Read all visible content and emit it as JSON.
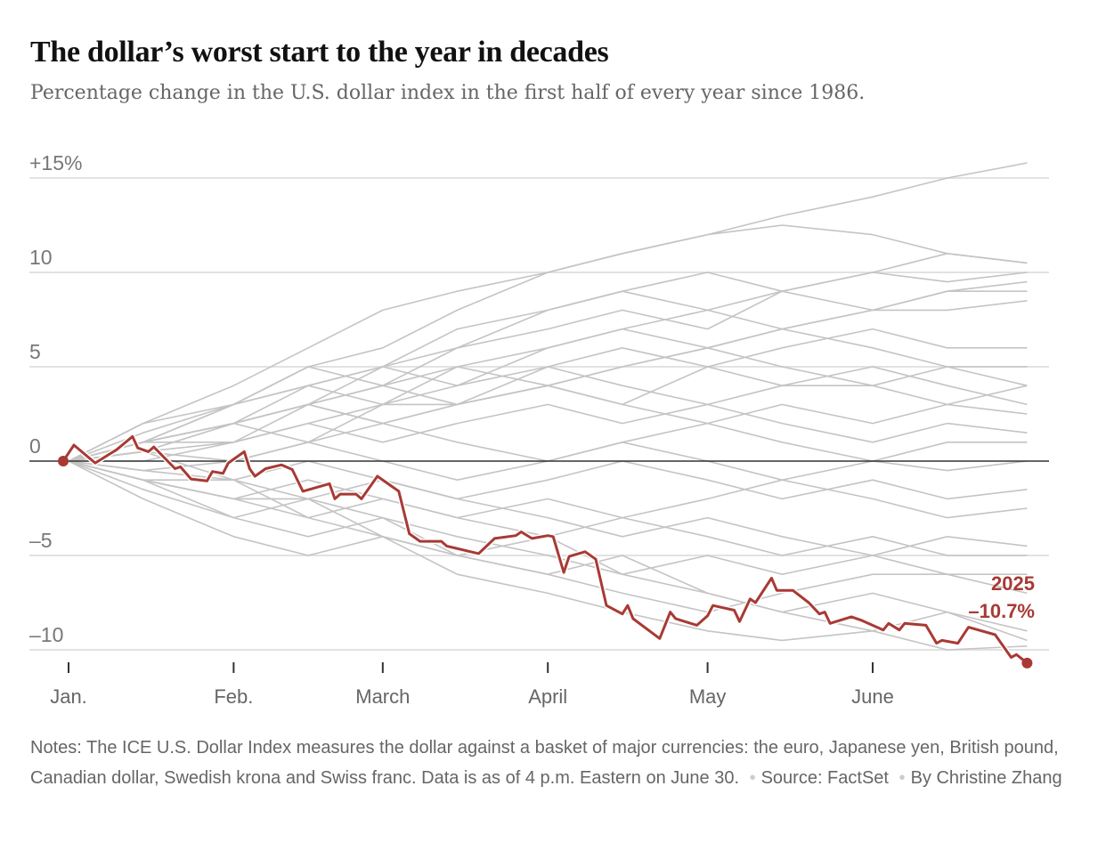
{
  "title": "The dollar’s worst start to the year in decades",
  "subtitle": "Percentage change in the U.S. dollar index in the first half of every year since 1986.",
  "notes": {
    "text": "Notes: The ICE U.S. Dollar Index measures the dollar against a basket of major currencies: the euro, Japanese yen, British pound, Canadian dollar, Swedish krona and Swiss franc. Data is as of 4 p.m. Eastern on June 30.",
    "source": "Source: FactSet",
    "byline": "By Christine Zhang"
  },
  "chart_data": {
    "type": "line",
    "title": "The dollar’s worst start to the year in decades",
    "xlabel": "",
    "ylabel": "",
    "ylim": [
      -11,
      15.5
    ],
    "xlim": [
      "2025-01-01",
      "2025-06-30"
    ],
    "grid": true,
    "y_ticks": [
      {
        "value": 15,
        "label": "+15%"
      },
      {
        "value": 10,
        "label": "10"
      },
      {
        "value": 5,
        "label": "5"
      },
      {
        "value": 0,
        "label": "0"
      },
      {
        "value": -5,
        "label": "–5"
      },
      {
        "value": -10,
        "label": "–10"
      }
    ],
    "x_ticks": [
      {
        "date": "2025-01-01",
        "label": "Jan."
      },
      {
        "date": "2025-02-01",
        "label": "Feb."
      },
      {
        "date": "2025-03-01",
        "label": "March"
      },
      {
        "date": "2025-04-01",
        "label": "April"
      },
      {
        "date": "2025-05-01",
        "label": "May"
      },
      {
        "date": "2025-06-01",
        "label": "June"
      }
    ],
    "colors": {
      "highlight": "#a83a34",
      "other_years": "#c4c4c4",
      "zero_line": "#333333",
      "grid": "#e2e2e2"
    },
    "highlight": {
      "name": "2025",
      "label_value": "–10.7%",
      "points": [
        [
          "2024-12-31",
          0
        ],
        [
          "2025-01-02",
          0.85
        ],
        [
          "2025-01-06",
          -0.1
        ],
        [
          "2025-01-10",
          0.6
        ],
        [
          "2025-01-13",
          1.3
        ],
        [
          "2025-01-14",
          0.7
        ],
        [
          "2025-01-16",
          0.5
        ],
        [
          "2025-01-17",
          0.75
        ],
        [
          "2025-01-21",
          -0.4
        ],
        [
          "2025-01-22",
          -0.3
        ],
        [
          "2025-01-24",
          -0.95
        ],
        [
          "2025-01-27",
          -1.05
        ],
        [
          "2025-01-28",
          -0.55
        ],
        [
          "2025-01-30",
          -0.65
        ],
        [
          "2025-01-31",
          -0.1
        ],
        [
          "2025-02-03",
          0.5
        ],
        [
          "2025-02-04",
          -0.4
        ],
        [
          "2025-02-05",
          -0.8
        ],
        [
          "2025-02-07",
          -0.4
        ],
        [
          "2025-02-10",
          -0.2
        ],
        [
          "2025-02-12",
          -0.45
        ],
        [
          "2025-02-14",
          -1.6
        ],
        [
          "2025-02-19",
          -1.2
        ],
        [
          "2025-02-20",
          -2.0
        ],
        [
          "2025-02-21",
          -1.75
        ],
        [
          "2025-02-24",
          -1.75
        ],
        [
          "2025-02-25",
          -2.0
        ],
        [
          "2025-02-28",
          -0.8
        ],
        [
          "2025-03-04",
          -1.6
        ],
        [
          "2025-03-06",
          -3.85
        ],
        [
          "2025-03-08",
          -4.25
        ],
        [
          "2025-03-12",
          -4.25
        ],
        [
          "2025-03-13",
          -4.5
        ],
        [
          "2025-03-19",
          -4.9
        ],
        [
          "2025-03-22",
          -4.1
        ],
        [
          "2025-03-26",
          -3.95
        ],
        [
          "2025-03-27",
          -3.75
        ],
        [
          "2025-03-29",
          -4.1
        ],
        [
          "2025-04-01",
          -3.95
        ],
        [
          "2025-04-02",
          -4.0
        ],
        [
          "2025-04-04",
          -5.9
        ],
        [
          "2025-04-05",
          -5.05
        ],
        [
          "2025-04-08",
          -4.8
        ],
        [
          "2025-04-10",
          -5.2
        ],
        [
          "2025-04-12",
          -7.65
        ],
        [
          "2025-04-15",
          -8.1
        ],
        [
          "2025-04-16",
          -7.65
        ],
        [
          "2025-04-17",
          -8.35
        ],
        [
          "2025-04-22",
          -9.4
        ],
        [
          "2025-04-24",
          -8.0
        ],
        [
          "2025-04-25",
          -8.35
        ],
        [
          "2025-04-29",
          -8.7
        ],
        [
          "2025-05-01",
          -8.2
        ],
        [
          "2025-05-02",
          -7.65
        ],
        [
          "2025-05-06",
          -7.9
        ],
        [
          "2025-05-07",
          -8.5
        ],
        [
          "2025-05-09",
          -7.3
        ],
        [
          "2025-05-10",
          -7.5
        ],
        [
          "2025-05-13",
          -6.2
        ],
        [
          "2025-05-14",
          -6.85
        ],
        [
          "2025-05-17",
          -6.85
        ],
        [
          "2025-05-20",
          -7.5
        ],
        [
          "2025-05-22",
          -8.1
        ],
        [
          "2025-05-23",
          -8.0
        ],
        [
          "2025-05-24",
          -8.6
        ],
        [
          "2025-05-28",
          -8.25
        ],
        [
          "2025-05-30",
          -8.45
        ],
        [
          "2025-06-03",
          -8.95
        ],
        [
          "2025-06-04",
          -8.6
        ],
        [
          "2025-06-06",
          -8.95
        ],
        [
          "2025-06-07",
          -8.6
        ],
        [
          "2025-06-11",
          -8.7
        ],
        [
          "2025-06-13",
          -9.65
        ],
        [
          "2025-06-14",
          -9.5
        ],
        [
          "2025-06-17",
          -9.65
        ],
        [
          "2025-06-19",
          -8.8
        ],
        [
          "2025-06-24",
          -9.2
        ],
        [
          "2025-06-27",
          -10.4
        ],
        [
          "2025-06-28",
          -10.25
        ],
        [
          "2025-06-30",
          -10.7
        ]
      ]
    },
    "other_years": {
      "x": [
        "2025-01-01",
        "2025-01-15",
        "2025-02-01",
        "2025-02-15",
        "2025-03-01",
        "2025-03-15",
        "2025-04-01",
        "2025-04-15",
        "2025-05-01",
        "2025-05-15",
        "2025-06-01",
        "2025-06-15",
        "2025-06-30"
      ],
      "series": [
        [
          0,
          1.5,
          3,
          5,
          6,
          8,
          10,
          11,
          12,
          13,
          14,
          15,
          15.8
        ],
        [
          0,
          2,
          4,
          6,
          8,
          9,
          10,
          11,
          12,
          12.5,
          12,
          11,
          10.5
        ],
        [
          0,
          1,
          3,
          4,
          5,
          7,
          8,
          9,
          8,
          9,
          10,
          9.5,
          10
        ],
        [
          0,
          1,
          2,
          3,
          5,
          6,
          8,
          9,
          10,
          9,
          8,
          9,
          9.5
        ],
        [
          0,
          0.5,
          2,
          4,
          5,
          4,
          6,
          7,
          8,
          7,
          8,
          9,
          9
        ],
        [
          0,
          2,
          3,
          4,
          3,
          5,
          6,
          7,
          6,
          7,
          8,
          8,
          8.5
        ],
        [
          0,
          1,
          2,
          1,
          3,
          4,
          5,
          6,
          5,
          6,
          7,
          6,
          6
        ],
        [
          0,
          1,
          1,
          2,
          3,
          3,
          4,
          5,
          6,
          5,
          4,
          5,
          5
        ],
        [
          0,
          0.5,
          1,
          3,
          2,
          3,
          4,
          3,
          5,
          4,
          4,
          3,
          4
        ],
        [
          0,
          1,
          2,
          3,
          4,
          3,
          4,
          3,
          2,
          3,
          2,
          3,
          2.5
        ],
        [
          0,
          0,
          1,
          2,
          1,
          2,
          3,
          2,
          3,
          2,
          1,
          2,
          1.5
        ],
        [
          0,
          0.5,
          0,
          1,
          2,
          1,
          0,
          1,
          2,
          1,
          0,
          1,
          1
        ],
        [
          0,
          -0.5,
          0,
          1,
          0,
          -1,
          0,
          1,
          0,
          -1,
          0,
          -0.5,
          0
        ],
        [
          0,
          -1,
          -1,
          0,
          -1,
          -2,
          -1,
          0,
          -1,
          -2,
          -1,
          -2,
          -1.5
        ],
        [
          0,
          -1,
          -2,
          -1,
          -2,
          -3,
          -2,
          -3,
          -2,
          -1,
          -2,
          -3,
          -2.5
        ],
        [
          0,
          -1,
          -2,
          -3,
          -2,
          -3,
          -4,
          -3,
          -4,
          -5,
          -4,
          -5,
          -5
        ],
        [
          0,
          -1,
          -2,
          -2,
          -3,
          -4,
          -5,
          -6,
          -5,
          -6,
          -5,
          -6,
          -6
        ],
        [
          0,
          -1.5,
          -3,
          -4,
          -3,
          -5,
          -6,
          -7,
          -8,
          -7,
          -6,
          -6,
          -7
        ],
        [
          0,
          -1,
          -3,
          -2,
          -4,
          -5,
          -4,
          -6,
          -7,
          -8,
          -7,
          -8,
          -9.5
        ],
        [
          0,
          -2,
          -4,
          -5,
          -4,
          -6,
          -7,
          -8,
          -9,
          -9.5,
          -9,
          -8,
          -9
        ],
        [
          0,
          0.5,
          2,
          3,
          2,
          3,
          5,
          4,
          3,
          4,
          5,
          4,
          3
        ],
        [
          0,
          1,
          2,
          3,
          4,
          5,
          4,
          5,
          6,
          7,
          6,
          5,
          4
        ],
        [
          0,
          -0.5,
          -1,
          -2,
          -1,
          -2,
          -3,
          -4,
          -3,
          -4,
          -5,
          -4,
          -4.5
        ],
        [
          0,
          1,
          3,
          5,
          4,
          6,
          7,
          8,
          7,
          9,
          10,
          11,
          10.5
        ],
        [
          0,
          0.5,
          -1,
          -3,
          -4,
          -5,
          -6,
          -5,
          -7,
          -8,
          -9,
          -10,
          -9.8
        ]
      ]
    }
  }
}
